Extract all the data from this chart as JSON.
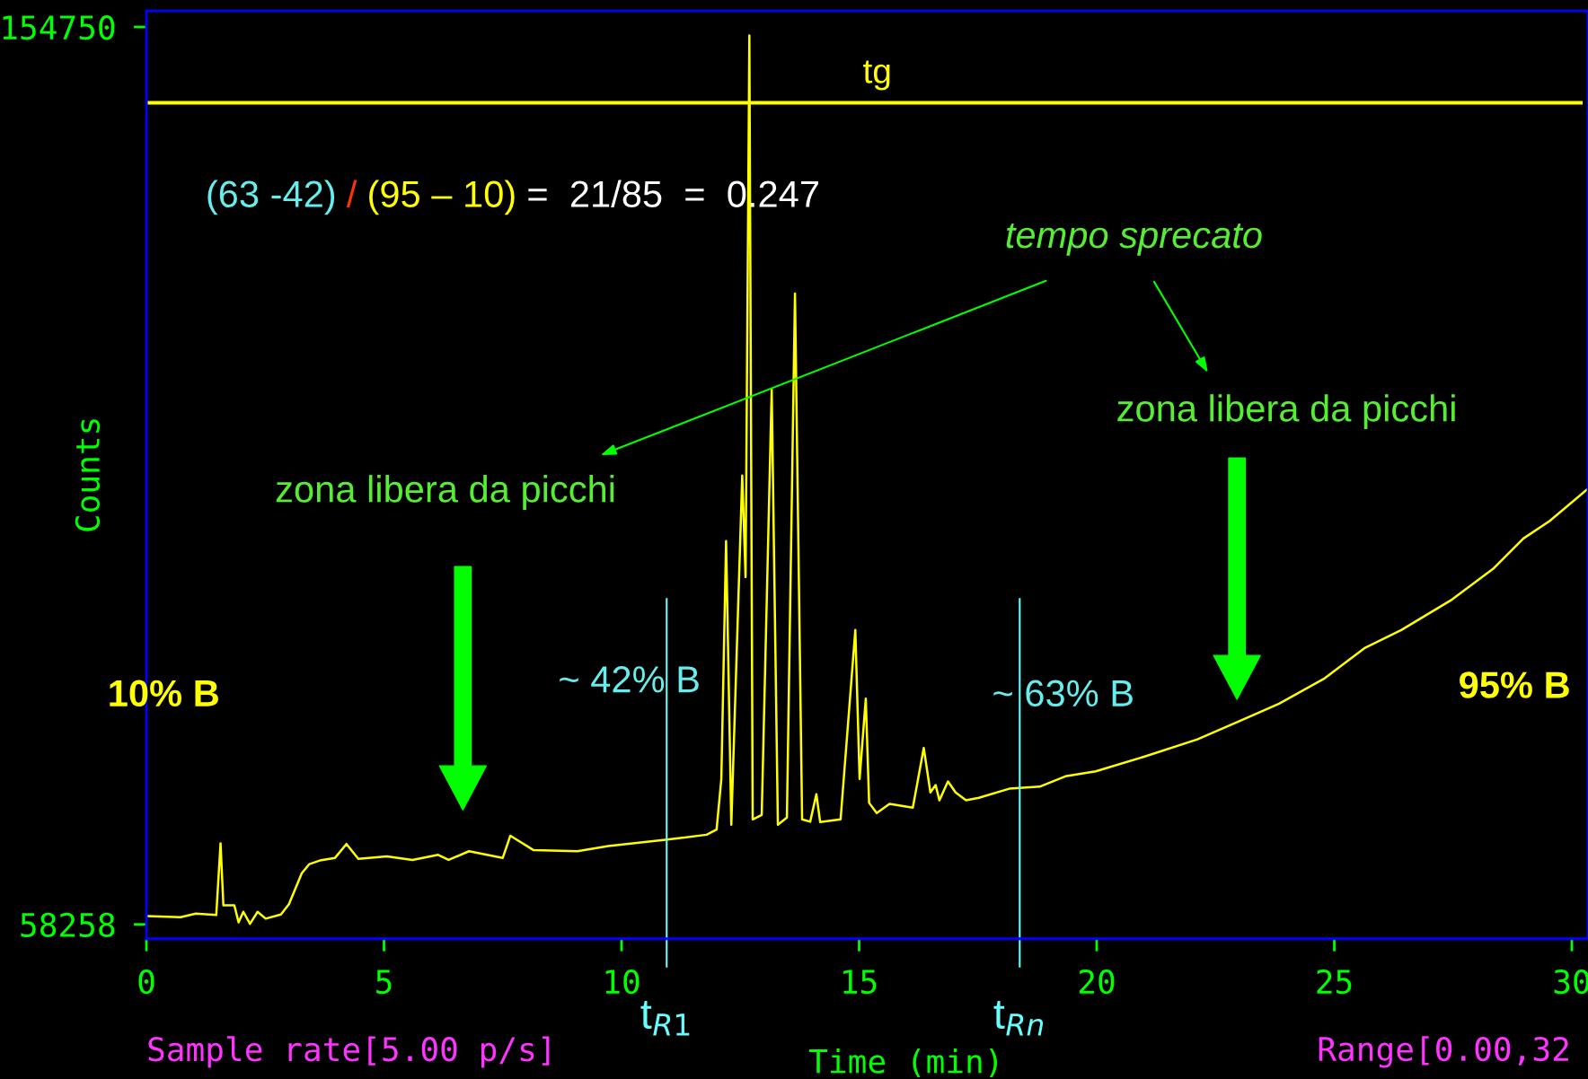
{
  "chart_data": {
    "type": "line",
    "xlabel": "Time (min)",
    "ylabel": "Counts",
    "xlim": [
      0,
      30.34
    ],
    "ylim": [
      56714,
      156490
    ],
    "xticks": [
      0,
      5,
      10,
      15,
      20,
      25,
      30
    ],
    "yticks": [
      58258,
      154750
    ],
    "grid": false,
    "legend": false,
    "series": [
      {
        "color": "#ffff00",
        "x": [
          0.01,
          0.72,
          1.04,
          1.47,
          1.56,
          1.62,
          1.85,
          1.94,
          2.04,
          2.18,
          2.34,
          2.51,
          2.83,
          3.0,
          3.27,
          3.43,
          3.65,
          3.97,
          4.21,
          4.46,
          5.06,
          5.6,
          6.14,
          6.36,
          6.79,
          7.5,
          7.66,
          8.15,
          9.07,
          9.72,
          10.92,
          11.79,
          12.0,
          12.1,
          12.2,
          12.31,
          12.54,
          12.61,
          12.69,
          12.76,
          12.95,
          13.16,
          13.29,
          13.48,
          13.65,
          13.8,
          13.97,
          14.1,
          14.18,
          14.61,
          14.92,
          15.01,
          15.14,
          15.21,
          15.37,
          15.64,
          16.13,
          16.36,
          16.5,
          16.61,
          16.69,
          16.87,
          17.03,
          17.25,
          17.52,
          18.16,
          18.8,
          19.34,
          19.98,
          21.04,
          22.12,
          22.98,
          23.84,
          24.8,
          25.65,
          26.41,
          27.48,
          28.34,
          28.98,
          29.53,
          30.34
        ],
        "values": [
          59146,
          59030,
          59416,
          59262,
          66962,
          60310,
          60310,
          58480,
          59609,
          58316,
          59609,
          58876,
          59320,
          60420,
          63760,
          64742,
          65129,
          65409,
          66904,
          65302,
          65572,
          65186,
          65736,
          65186,
          66122,
          65409,
          67792,
          66238,
          66122,
          66682,
          67348,
          67898,
          68457,
          73890,
          99464,
          68970,
          106508,
          95600,
          153841,
          69549,
          70030,
          115772,
          68970,
          69742,
          126097,
          69549,
          69297,
          72250,
          69258,
          69549,
          89910,
          73890,
          82528,
          71324,
          70224,
          71207,
          70803,
          77230,
          72443,
          73234,
          71594,
          73620,
          72443,
          71594,
          71864,
          72848,
          73070,
          74180,
          74711,
          76352,
          78156,
          80067,
          81997,
          84718,
          87999,
          89910,
          93191,
          96472,
          99753,
          101615,
          105100
        ]
      }
    ],
    "ref_lines": [
      {
        "axis": "y",
        "value": 146600,
        "label": "tg",
        "color": "#ffff00"
      },
      {
        "axis": "x",
        "value": 10.95,
        "label": "t$_{R1}$",
        "color": "#66ffff"
      },
      {
        "axis": "x",
        "value": 18.38,
        "label": "t$_{Rn}$",
        "color": "#66ffff"
      }
    ],
    "annotations": [
      "(63 -42)",
      "/",
      "(95 – 10)",
      "=  21/85  =  0.247",
      "tempo sprecato",
      "zona libera da picchi",
      "zona libera da picchi",
      "10% B",
      "95% B",
      "~ 42% B",
      "~ 63% B",
      "Sample rate[5.00 p/s]",
      "Range[0.00,32"
    ]
  }
}
